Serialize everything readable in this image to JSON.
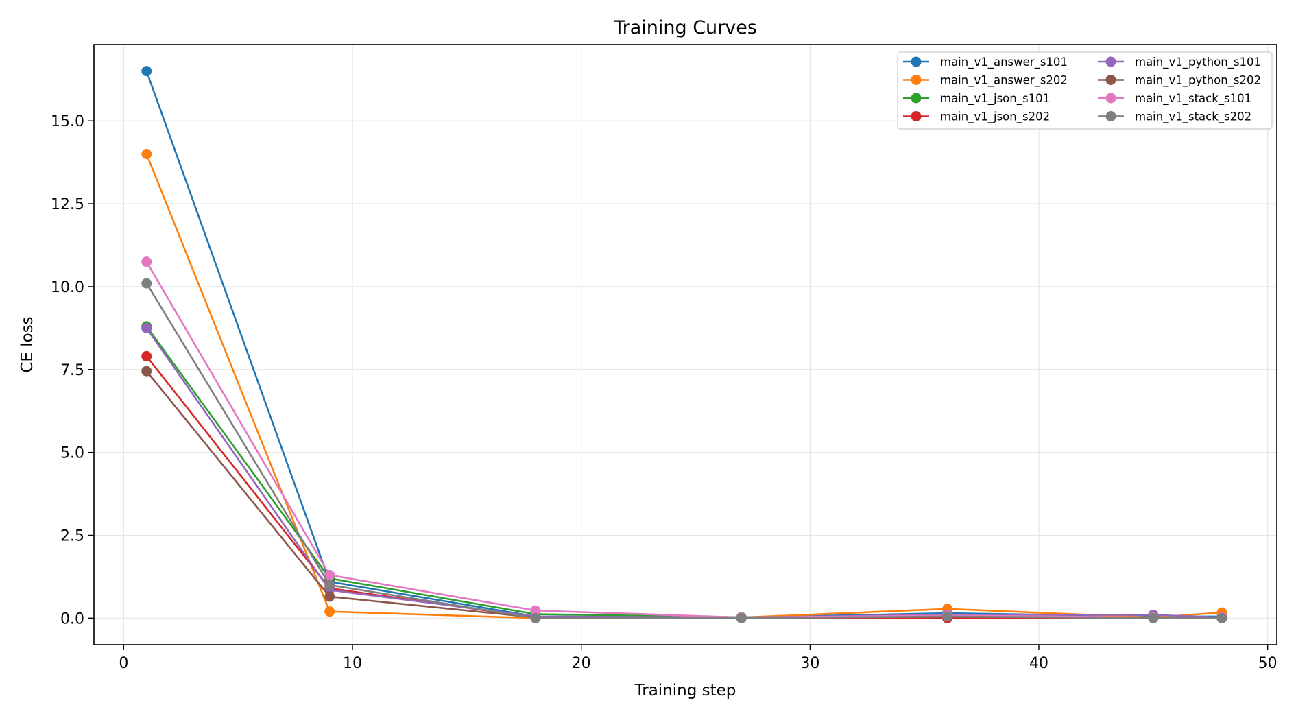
{
  "chart_data": {
    "type": "line",
    "title": "Training Curves",
    "xlabel": "Training step",
    "ylabel": "CE loss",
    "xlim": [
      -1.3,
      50.4
    ],
    "ylim": [
      -0.8,
      17.3
    ],
    "xticks": [
      0,
      10,
      20,
      30,
      40,
      50
    ],
    "xtick_labels": [
      "0",
      "10",
      "20",
      "30",
      "40",
      "50"
    ],
    "yticks": [
      0.0,
      2.5,
      5.0,
      7.5,
      10.0,
      12.5,
      15.0
    ],
    "ytick_labels": [
      "0.0",
      "2.5",
      "5.0",
      "7.5",
      "10.0",
      "12.5",
      "15.0"
    ],
    "grid": true,
    "legend_position": "top-right",
    "x": [
      1,
      9,
      18,
      27,
      36,
      45,
      48
    ],
    "series": [
      {
        "name": "main_v1_answer_s101",
        "color": "#1f77b4",
        "values": [
          16.5,
          1.1,
          0.05,
          0.02,
          0.15,
          0.05,
          0.05
        ]
      },
      {
        "name": "main_v1_answer_s202",
        "color": "#ff7f0e",
        "values": [
          14.0,
          0.2,
          0.0,
          0.02,
          0.28,
          0.02,
          0.17
        ]
      },
      {
        "name": "main_v1_json_s101",
        "color": "#2ca02c",
        "values": [
          8.8,
          1.2,
          0.12,
          0.03,
          0.05,
          0.02,
          0.02
        ]
      },
      {
        "name": "main_v1_json_s202",
        "color": "#d62728",
        "values": [
          7.9,
          0.9,
          0.02,
          0.01,
          0.0,
          0.01,
          0.0
        ]
      },
      {
        "name": "main_v1_python_s101",
        "color": "#9467bd",
        "values": [
          8.75,
          0.85,
          0.05,
          0.02,
          0.1,
          0.1,
          0.02
        ]
      },
      {
        "name": "main_v1_python_s202",
        "color": "#8c564b",
        "values": [
          7.45,
          0.65,
          0.02,
          0.01,
          0.05,
          0.02,
          0.02
        ]
      },
      {
        "name": "main_v1_stack_s101",
        "color": "#e377c2",
        "values": [
          10.75,
          1.3,
          0.23,
          0.02,
          0.08,
          0.02,
          0.02
        ]
      },
      {
        "name": "main_v1_stack_s202",
        "color": "#7f7f7f",
        "values": [
          10.1,
          1.0,
          0.0,
          0.0,
          0.05,
          0.0,
          0.0
        ]
      }
    ]
  }
}
